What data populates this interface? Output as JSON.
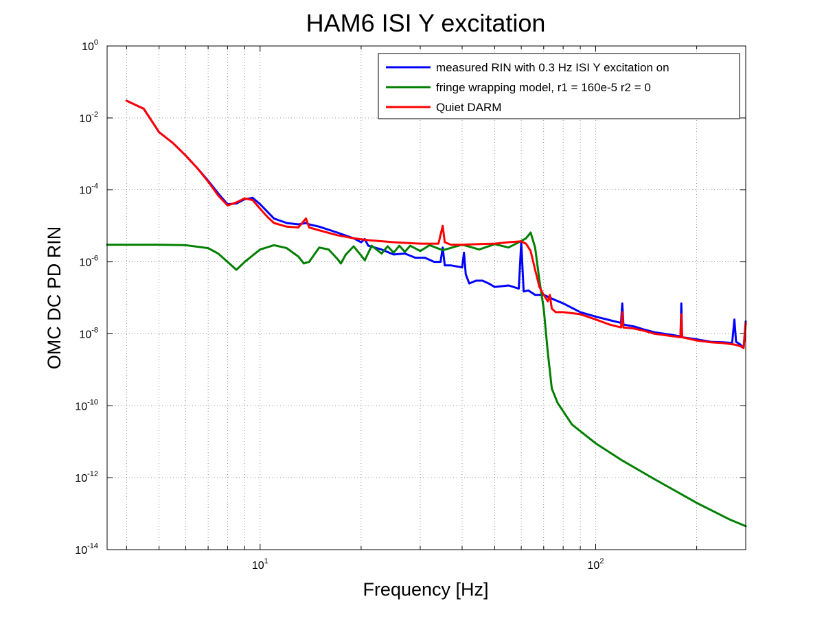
{
  "chart_data": {
    "type": "line",
    "title": "HAM6 ISI Y excitation",
    "xlabel": "Frequency [Hz]",
    "ylabel": "OMC DC PD RIN",
    "xscale": "log",
    "yscale": "log",
    "xlim": [
      3.5,
      280
    ],
    "ylim": [
      1e-14,
      1
    ],
    "grid": true,
    "legend_position": "top-right",
    "x_ticks": [
      {
        "value": 10,
        "base": "10",
        "exp": "1"
      },
      {
        "value": 100,
        "base": "10",
        "exp": "2"
      }
    ],
    "y_ticks": [
      {
        "value": 1,
        "base": "10",
        "exp": "0"
      },
      {
        "value": 0.01,
        "base": "10",
        "exp": "-2"
      },
      {
        "value": 0.0001,
        "base": "10",
        "exp": "-4"
      },
      {
        "value": 1e-06,
        "base": "10",
        "exp": "-6"
      },
      {
        "value": 1e-08,
        "base": "10",
        "exp": "-8"
      },
      {
        "value": 1e-10,
        "base": "10",
        "exp": "-10"
      },
      {
        "value": 1e-12,
        "base": "10",
        "exp": "-12"
      },
      {
        "value": 1e-14,
        "base": "10",
        "exp": "-14"
      }
    ],
    "series": [
      {
        "name": "measured RIN with 0.3 Hz ISI Y excitation on",
        "color": "#0000ff",
        "points": [
          [
            4.0,
            0.03
          ],
          [
            4.5,
            0.018
          ],
          [
            5.0,
            0.004
          ],
          [
            5.5,
            0.002
          ],
          [
            6.0,
            0.0009
          ],
          [
            6.5,
            0.0004
          ],
          [
            7.0,
            0.00018
          ],
          [
            7.5,
            8e-05
          ],
          [
            8.0,
            4e-05
          ],
          [
            8.5,
            4.2e-05
          ],
          [
            9.0,
            5.5e-05
          ],
          [
            9.5,
            6e-05
          ],
          [
            10.0,
            4e-05
          ],
          [
            10.5,
            2.5e-05
          ],
          [
            11.0,
            1.6e-05
          ],
          [
            12.0,
            1.2e-05
          ],
          [
            13.0,
            1.1e-05
          ],
          [
            13.7,
            1.2e-05
          ],
          [
            14.0,
            1.1e-05
          ],
          [
            15.0,
            9.5e-06
          ],
          [
            17.0,
            6.5e-06
          ],
          [
            19.0,
            4.5e-06
          ],
          [
            20.0,
            3.5e-06
          ],
          [
            20.5,
            4.3e-06
          ],
          [
            21.0,
            2.8e-06
          ],
          [
            23.0,
            2.2e-06
          ],
          [
            25.0,
            1.6e-06
          ],
          [
            27.0,
            1.7e-06
          ],
          [
            29.0,
            1.3e-06
          ],
          [
            31.0,
            1.3e-06
          ],
          [
            33.0,
            1e-06
          ],
          [
            34.5,
            1e-06
          ],
          [
            35.0,
            2.5e-06
          ],
          [
            35.5,
            8e-07
          ],
          [
            37.0,
            8e-07
          ],
          [
            40.0,
            7e-07
          ],
          [
            40.5,
            1.8e-06
          ],
          [
            41.0,
            4.5e-07
          ],
          [
            42.0,
            2.5e-07
          ],
          [
            44.0,
            3e-07
          ],
          [
            46.0,
            3e-07
          ],
          [
            48.0,
            2.5e-07
          ],
          [
            50.0,
            2e-07
          ],
          [
            55.0,
            2.2e-07
          ],
          [
            59.0,
            1.8e-07
          ],
          [
            60.0,
            3.5e-06
          ],
          [
            61.0,
            1.5e-07
          ],
          [
            63.0,
            1.6e-07
          ],
          [
            66.0,
            1.2e-07
          ],
          [
            70.0,
            1.2e-07
          ],
          [
            75.0,
            9e-08
          ],
          [
            80.0,
            7e-08
          ],
          [
            90.0,
            4e-08
          ],
          [
            100.0,
            3e-08
          ],
          [
            110.0,
            2.4e-08
          ],
          [
            119.0,
            2e-08
          ],
          [
            120.0,
            7e-08
          ],
          [
            121.0,
            1.8e-08
          ],
          [
            130.0,
            1.6e-08
          ],
          [
            140.0,
            1.3e-08
          ],
          [
            150.0,
            1.1e-08
          ],
          [
            160.0,
            1e-08
          ],
          [
            179.0,
            8.5e-09
          ],
          [
            180.0,
            7e-08
          ],
          [
            181.0,
            8e-09
          ],
          [
            200.0,
            7e-09
          ],
          [
            220.0,
            6e-09
          ],
          [
            240.0,
            5.8e-09
          ],
          [
            255.0,
            5.5e-09
          ],
          [
            259.0,
            2.5e-08
          ],
          [
            262.0,
            6e-09
          ],
          [
            270.0,
            5e-09
          ],
          [
            276.0,
            4e-09
          ],
          [
            280.0,
            2.2e-08
          ]
        ]
      },
      {
        "name": "fringe wrapping model, r1 = 160e-5 r2 = 0",
        "color": "#007f00",
        "points": [
          [
            3.5,
            3e-06
          ],
          [
            4.0,
            3e-06
          ],
          [
            5.0,
            3e-06
          ],
          [
            6.0,
            2.9e-06
          ],
          [
            7.0,
            2.4e-06
          ],
          [
            7.5,
            1.7e-06
          ],
          [
            8.0,
            1e-06
          ],
          [
            8.5,
            6e-07
          ],
          [
            9.0,
            1e-06
          ],
          [
            10.0,
            2.2e-06
          ],
          [
            11.0,
            2.9e-06
          ],
          [
            12.0,
            2.4e-06
          ],
          [
            13.0,
            1.4e-06
          ],
          [
            13.5,
            9e-07
          ],
          [
            14.0,
            1e-06
          ],
          [
            15.0,
            2.5e-06
          ],
          [
            16.0,
            2.2e-06
          ],
          [
            17.0,
            1.2e-06
          ],
          [
            17.4,
            9e-07
          ],
          [
            18.0,
            1.6e-06
          ],
          [
            19.0,
            2.7e-06
          ],
          [
            20.0,
            1.5e-06
          ],
          [
            20.5,
            1.1e-06
          ],
          [
            21.5,
            2.8e-06
          ],
          [
            23.0,
            1.7e-06
          ],
          [
            24.0,
            2.7e-06
          ],
          [
            25.0,
            1.8e-06
          ],
          [
            26.0,
            2.8e-06
          ],
          [
            27.0,
            1.9e-06
          ],
          [
            28.0,
            2.8e-06
          ],
          [
            30.0,
            2e-06
          ],
          [
            32.0,
            2.9e-06
          ],
          [
            35.0,
            2.1e-06
          ],
          [
            40.0,
            3e-06
          ],
          [
            45.0,
            2.2e-06
          ],
          [
            50.0,
            3.1e-06
          ],
          [
            55.0,
            2.5e-06
          ],
          [
            60.0,
            3.8e-06
          ],
          [
            62.0,
            4.5e-06
          ],
          [
            64.0,
            6.5e-06
          ],
          [
            66.0,
            2.5e-06
          ],
          [
            68.0,
            3e-07
          ],
          [
            70.0,
            5e-08
          ],
          [
            72.0,
            3e-09
          ],
          [
            74.0,
            3e-10
          ],
          [
            77.0,
            1.2e-10
          ],
          [
            85.0,
            3e-11
          ],
          [
            100.0,
            9e-12
          ],
          [
            120.0,
            3e-12
          ],
          [
            150.0,
            9e-13
          ],
          [
            200.0,
            2e-13
          ],
          [
            250.0,
            7e-14
          ],
          [
            280.0,
            4.5e-14
          ]
        ]
      },
      {
        "name": "Quiet DARM",
        "color": "#ff0000",
        "points": [
          [
            4.0,
            0.03
          ],
          [
            4.5,
            0.018
          ],
          [
            5.0,
            0.004
          ],
          [
            5.5,
            0.002
          ],
          [
            6.0,
            0.0009
          ],
          [
            6.5,
            0.0004
          ],
          [
            7.0,
            0.00017
          ],
          [
            7.5,
            7e-05
          ],
          [
            8.0,
            3.7e-05
          ],
          [
            8.5,
            4.5e-05
          ],
          [
            9.0,
            5.8e-05
          ],
          [
            9.5,
            5.2e-05
          ],
          [
            10.0,
            3e-05
          ],
          [
            10.5,
            1.8e-05
          ],
          [
            11.0,
            1.2e-05
          ],
          [
            12.0,
            9.5e-06
          ],
          [
            13.0,
            9e-06
          ],
          [
            13.7,
            1.6e-05
          ],
          [
            14.0,
            9e-06
          ],
          [
            15.0,
            7.5e-06
          ],
          [
            17.0,
            5.5e-06
          ],
          [
            19.0,
            4.5e-06
          ],
          [
            21.0,
            4e-06
          ],
          [
            25.0,
            3.5e-06
          ],
          [
            30.0,
            3.2e-06
          ],
          [
            34.0,
            3.2e-06
          ],
          [
            35.0,
            1e-05
          ],
          [
            35.5,
            3.5e-06
          ],
          [
            37.0,
            3e-06
          ],
          [
            40.0,
            3e-06
          ],
          [
            45.0,
            3.1e-06
          ],
          [
            50.0,
            3.2e-06
          ],
          [
            55.0,
            3.5e-06
          ],
          [
            60.0,
            3.7e-06
          ],
          [
            62.0,
            3.2e-06
          ],
          [
            64.0,
            2e-06
          ],
          [
            66.0,
            6e-07
          ],
          [
            68.0,
            2e-07
          ],
          [
            70.0,
            1.2e-07
          ],
          [
            72.0,
            8e-08
          ],
          [
            73.0,
            1.2e-07
          ],
          [
            74.0,
            5e-08
          ],
          [
            76.0,
            4e-08
          ],
          [
            80.0,
            4e-08
          ],
          [
            90.0,
            3.5e-08
          ],
          [
            100.0,
            2.5e-08
          ],
          [
            110.0,
            1.8e-08
          ],
          [
            119.0,
            1.5e-08
          ],
          [
            120.0,
            4e-08
          ],
          [
            121.0,
            1.5e-08
          ],
          [
            130.0,
            1.4e-08
          ],
          [
            140.0,
            1.2e-08
          ],
          [
            150.0,
            1e-08
          ],
          [
            179.0,
            8e-09
          ],
          [
            180.0,
            3.5e-08
          ],
          [
            181.0,
            8e-09
          ],
          [
            200.0,
            6.5e-09
          ],
          [
            220.0,
            5.8e-09
          ],
          [
            240.0,
            5.5e-09
          ],
          [
            260.0,
            5e-09
          ],
          [
            270.0,
            4.5e-09
          ],
          [
            276.0,
            4e-09
          ],
          [
            280.0,
            2e-08
          ]
        ]
      }
    ]
  }
}
